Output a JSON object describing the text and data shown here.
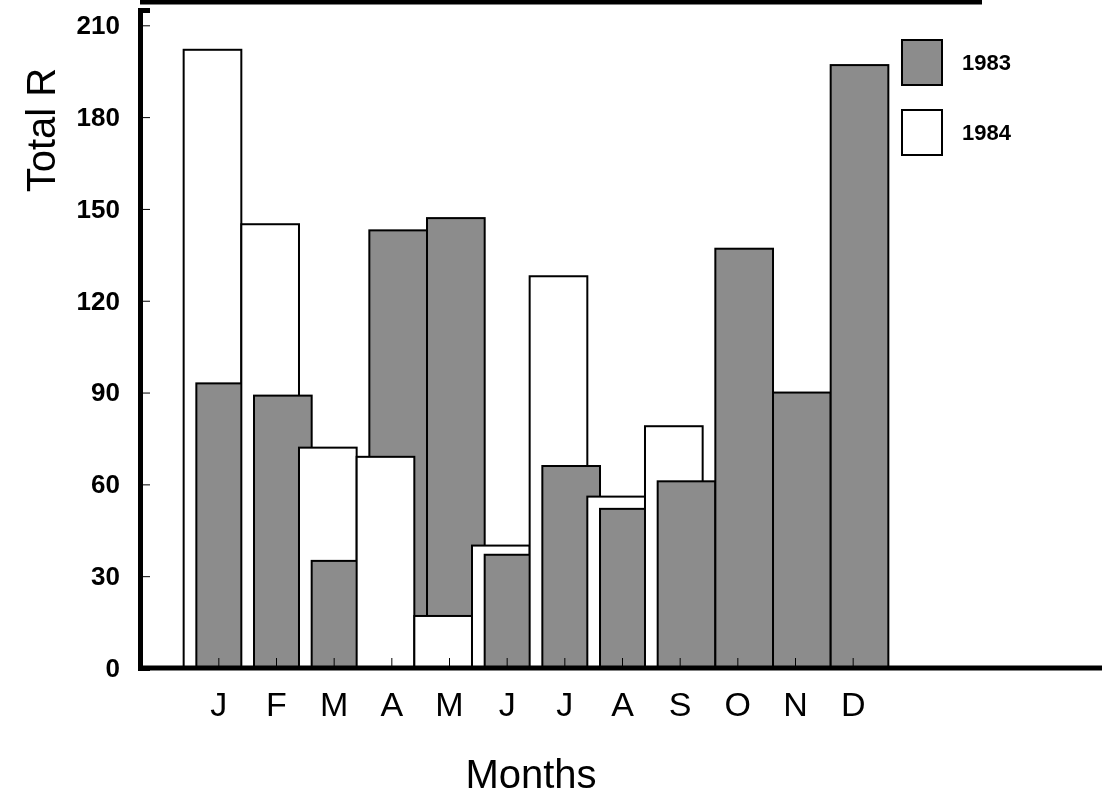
{
  "chart_data": {
    "type": "bar",
    "xlabel": "Months",
    "ylabel": "Total R",
    "categories": [
      "J",
      "F",
      "M",
      "A",
      "M",
      "J",
      "J",
      "A",
      "S",
      "O",
      "N",
      "D"
    ],
    "series": [
      {
        "name": "1983",
        "color": "#8c8c8c",
        "values": [
          93,
          89,
          35,
          143,
          147,
          37,
          66,
          52,
          61,
          137,
          90,
          197
        ]
      },
      {
        "name": "1984",
        "color": "#ffffff",
        "values": [
          202,
          145,
          72,
          69,
          17,
          40,
          128,
          56,
          79,
          null,
          null,
          null
        ]
      }
    ],
    "ylim": [
      0,
      215
    ],
    "yticks": [
      0,
      30,
      60,
      90,
      120,
      150,
      180,
      210
    ],
    "grid": false,
    "legend": "top right"
  }
}
